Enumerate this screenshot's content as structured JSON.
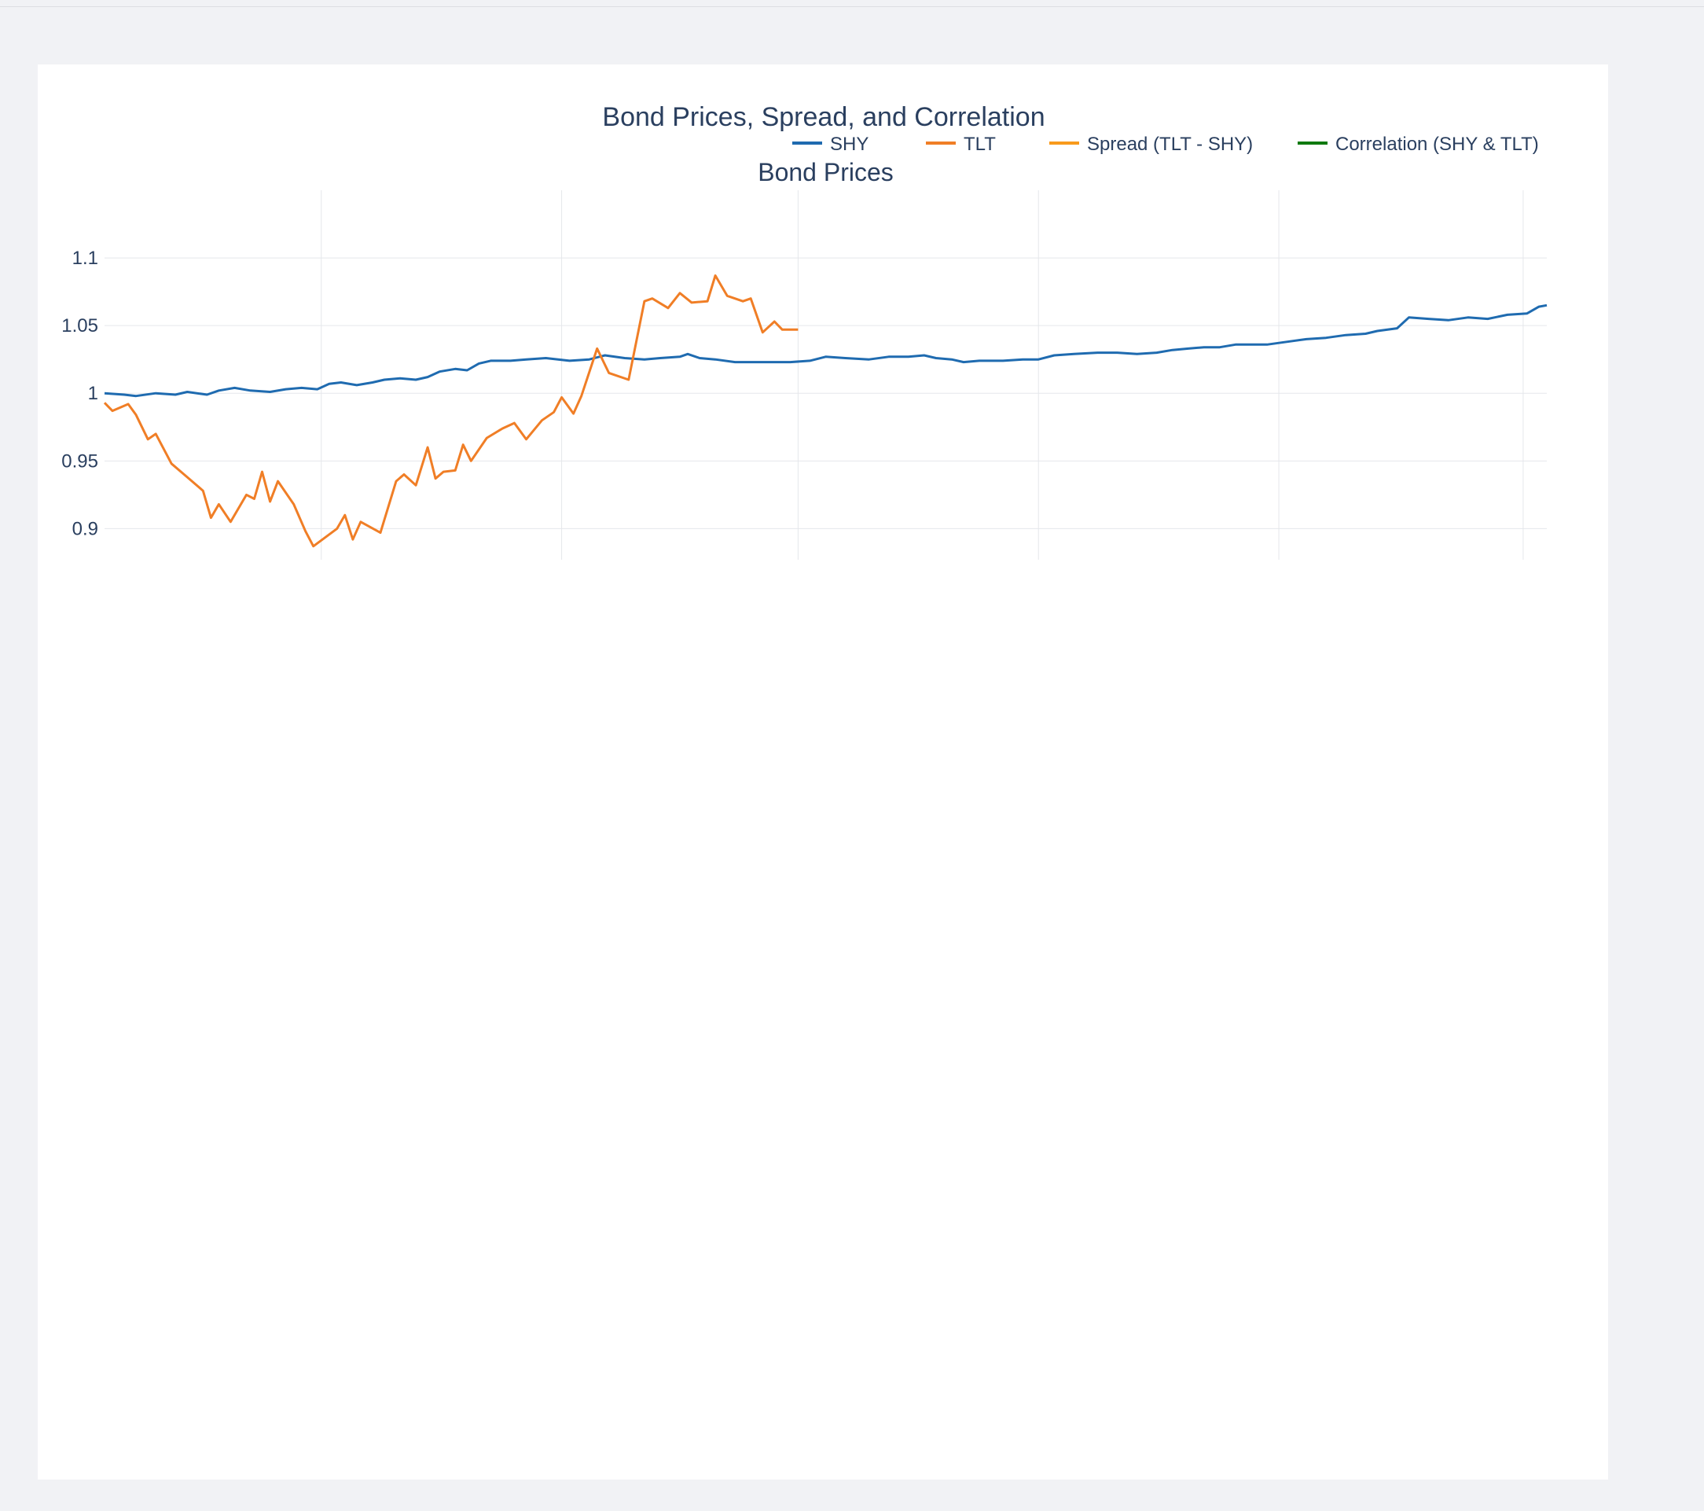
{
  "figure": {
    "title": "Bond Prices, Spread, and Correlation"
  },
  "legend": [
    {
      "name": "SHY",
      "color": "#1f6bb0"
    },
    {
      "name": "TLT",
      "color": "#f07e26"
    },
    {
      "name": "Spread (TLT - SHY)",
      "color": "#f89a1c"
    },
    {
      "name": "Correlation (SHY & TLT)",
      "color": "#0f7a0f"
    }
  ],
  "chart_data": [
    {
      "type": "line",
      "title": "Bond Prices",
      "x_type": "date",
      "xlim": [
        "2023-09-07",
        "2024-09-07"
      ],
      "ylim": [
        0.877,
        1.15
      ],
      "yticks": [
        0.9,
        0.95,
        1,
        1.05,
        1.1
      ],
      "ytick_labels": [
        "0.9",
        "0.95",
        "1",
        "1.05",
        "1.1"
      ],
      "xticks": [
        "2023-11-01",
        "2024-01-01",
        "2024-03-01",
        "2024-05-01",
        "2024-07-01",
        "2024-09-01"
      ],
      "xtick_labels": [],
      "grid": true,
      "series": [
        {
          "name": "SHY",
          "color": "#1f6bb0",
          "points": [
            [
              "2023-09-07",
              1.0
            ],
            [
              "2023-09-12",
              0.999
            ],
            [
              "2023-09-15",
              0.998
            ],
            [
              "2023-09-20",
              1.0
            ],
            [
              "2023-09-25",
              0.999
            ],
            [
              "2023-09-28",
              1.001
            ],
            [
              "2023-10-03",
              0.999
            ],
            [
              "2023-10-06",
              1.002
            ],
            [
              "2023-10-10",
              1.004
            ],
            [
              "2023-10-14",
              1.002
            ],
            [
              "2023-10-19",
              1.001
            ],
            [
              "2023-10-23",
              1.003
            ],
            [
              "2023-10-27",
              1.004
            ],
            [
              "2023-10-31",
              1.003
            ],
            [
              "2023-11-03",
              1.007
            ],
            [
              "2023-11-06",
              1.008
            ],
            [
              "2023-11-10",
              1.006
            ],
            [
              "2023-11-14",
              1.008
            ],
            [
              "2023-11-17",
              1.01
            ],
            [
              "2023-11-21",
              1.011
            ],
            [
              "2023-11-25",
              1.01
            ],
            [
              "2023-11-28",
              1.012
            ],
            [
              "2023-12-01",
              1.016
            ],
            [
              "2023-12-05",
              1.018
            ],
            [
              "2023-12-08",
              1.017
            ],
            [
              "2023-12-11",
              1.022
            ],
            [
              "2023-12-14",
              1.024
            ],
            [
              "2023-12-19",
              1.024
            ],
            [
              "2023-12-23",
              1.025
            ],
            [
              "2023-12-28",
              1.026
            ],
            [
              "2024-01-03",
              1.024
            ],
            [
              "2024-01-08",
              1.025
            ],
            [
              "2024-01-12",
              1.028
            ],
            [
              "2024-01-17",
              1.026
            ],
            [
              "2024-01-22",
              1.025
            ],
            [
              "2024-01-26",
              1.026
            ],
            [
              "2024-01-31",
              1.027
            ],
            [
              "2024-02-02",
              1.029
            ],
            [
              "2024-02-05",
              1.026
            ],
            [
              "2024-02-09",
              1.025
            ],
            [
              "2024-02-14",
              1.023
            ],
            [
              "2024-02-19",
              1.023
            ],
            [
              "2024-02-23",
              1.023
            ],
            [
              "2024-02-28",
              1.023
            ],
            [
              "2024-03-04",
              1.024
            ],
            [
              "2024-03-08",
              1.027
            ],
            [
              "2024-03-13",
              1.026
            ],
            [
              "2024-03-19",
              1.025
            ],
            [
              "2024-03-24",
              1.027
            ],
            [
              "2024-03-29",
              1.027
            ],
            [
              "2024-04-02",
              1.028
            ],
            [
              "2024-04-05",
              1.026
            ],
            [
              "2024-04-09",
              1.025
            ],
            [
              "2024-04-12",
              1.023
            ],
            [
              "2024-04-16",
              1.024
            ],
            [
              "2024-04-22",
              1.024
            ],
            [
              "2024-04-27",
              1.025
            ],
            [
              "2024-05-01",
              1.025
            ],
            [
              "2024-05-05",
              1.028
            ],
            [
              "2024-05-10",
              1.029
            ],
            [
              "2024-05-16",
              1.03
            ],
            [
              "2024-05-21",
              1.03
            ],
            [
              "2024-05-26",
              1.029
            ],
            [
              "2024-05-31",
              1.03
            ],
            [
              "2024-06-04",
              1.032
            ],
            [
              "2024-06-08",
              1.033
            ],
            [
              "2024-06-12",
              1.034
            ],
            [
              "2024-06-16",
              1.034
            ],
            [
              "2024-06-20",
              1.036
            ],
            [
              "2024-06-24",
              1.036
            ],
            [
              "2024-06-28",
              1.036
            ],
            [
              "2024-07-03",
              1.038
            ],
            [
              "2024-07-08",
              1.04
            ],
            [
              "2024-07-13",
              1.041
            ],
            [
              "2024-07-18",
              1.043
            ],
            [
              "2024-07-23",
              1.044
            ],
            [
              "2024-07-26",
              1.046
            ],
            [
              "2024-07-31",
              1.048
            ],
            [
              "2024-08-03",
              1.056
            ],
            [
              "2024-08-08",
              1.055
            ],
            [
              "2024-08-13",
              1.054
            ],
            [
              "2024-08-18",
              1.056
            ],
            [
              "2024-08-23",
              1.055
            ],
            [
              "2024-08-28",
              1.058
            ],
            [
              "2024-09-02",
              1.059
            ],
            [
              "2024-09-05",
              1.064
            ],
            [
              "2024-09-07",
              1.065
            ]
          ]
        },
        {
          "name": "TLT",
          "color": "#f07e26",
          "points": [
            [
              "2023-09-07",
              0.993
            ],
            [
              "2023-09-09",
              0.987
            ],
            [
              "2023-09-13",
              0.992
            ],
            [
              "2023-09-15",
              0.984
            ],
            [
              "2023-09-18",
              0.966
            ],
            [
              "2023-09-20",
              0.97
            ],
            [
              "2023-09-24",
              0.948
            ],
            [
              "2023-09-28",
              0.938
            ],
            [
              "2023-10-02",
              0.928
            ],
            [
              "2023-10-04",
              0.908
            ],
            [
              "2023-10-06",
              0.918
            ],
            [
              "2023-10-09",
              0.905
            ],
            [
              "2023-10-13",
              0.925
            ],
            [
              "2023-10-15",
              0.922
            ],
            [
              "2023-10-17",
              0.942
            ],
            [
              "2023-10-19",
              0.92
            ],
            [
              "2023-10-21",
              0.935
            ],
            [
              "2023-10-25",
              0.918
            ],
            [
              "2023-10-28",
              0.898
            ],
            [
              "2023-10-30",
              0.887
            ],
            [
              "2023-11-05",
              0.9
            ],
            [
              "2023-11-07",
              0.91
            ],
            [
              "2023-11-09",
              0.892
            ],
            [
              "2023-11-11",
              0.905
            ],
            [
              "2023-11-16",
              0.897
            ],
            [
              "2023-11-20",
              0.935
            ],
            [
              "2023-11-22",
              0.94
            ],
            [
              "2023-11-25",
              0.932
            ],
            [
              "2023-11-28",
              0.96
            ],
            [
              "2023-11-30",
              0.937
            ],
            [
              "2023-12-02",
              0.942
            ],
            [
              "2023-12-05",
              0.943
            ],
            [
              "2023-12-07",
              0.962
            ],
            [
              "2023-12-09",
              0.95
            ],
            [
              "2023-12-13",
              0.967
            ],
            [
              "2023-12-17",
              0.974
            ],
            [
              "2023-12-20",
              0.978
            ],
            [
              "2023-12-23",
              0.966
            ],
            [
              "2023-12-27",
              0.98
            ],
            [
              "2023-12-30",
              0.986
            ],
            [
              "2024-01-01",
              0.997
            ],
            [
              "2024-01-04",
              0.985
            ],
            [
              "2024-01-06",
              0.998
            ],
            [
              "2024-01-10",
              1.033
            ],
            [
              "2024-01-13",
              1.015
            ],
            [
              "2024-01-18",
              1.01
            ],
            [
              "2024-01-22",
              1.068
            ],
            [
              "2024-01-24",
              1.07
            ],
            [
              "2024-01-28",
              1.063
            ],
            [
              "2024-01-31",
              1.074
            ],
            [
              "2024-02-03",
              1.067
            ],
            [
              "2024-02-07",
              1.068
            ],
            [
              "2024-02-09",
              1.087
            ],
            [
              "2024-02-12",
              1.072
            ],
            [
              "2024-02-16",
              1.068
            ],
            [
              "2024-02-18",
              1.07
            ],
            [
              "2024-02-21",
              1.045
            ],
            [
              "2024-02-24",
              1.053
            ],
            [
              "2024-02-26",
              1.047
            ],
            [
              "2024-03-01",
              1.047
            ]
          ]
        }
      ]
    }
  ]
}
